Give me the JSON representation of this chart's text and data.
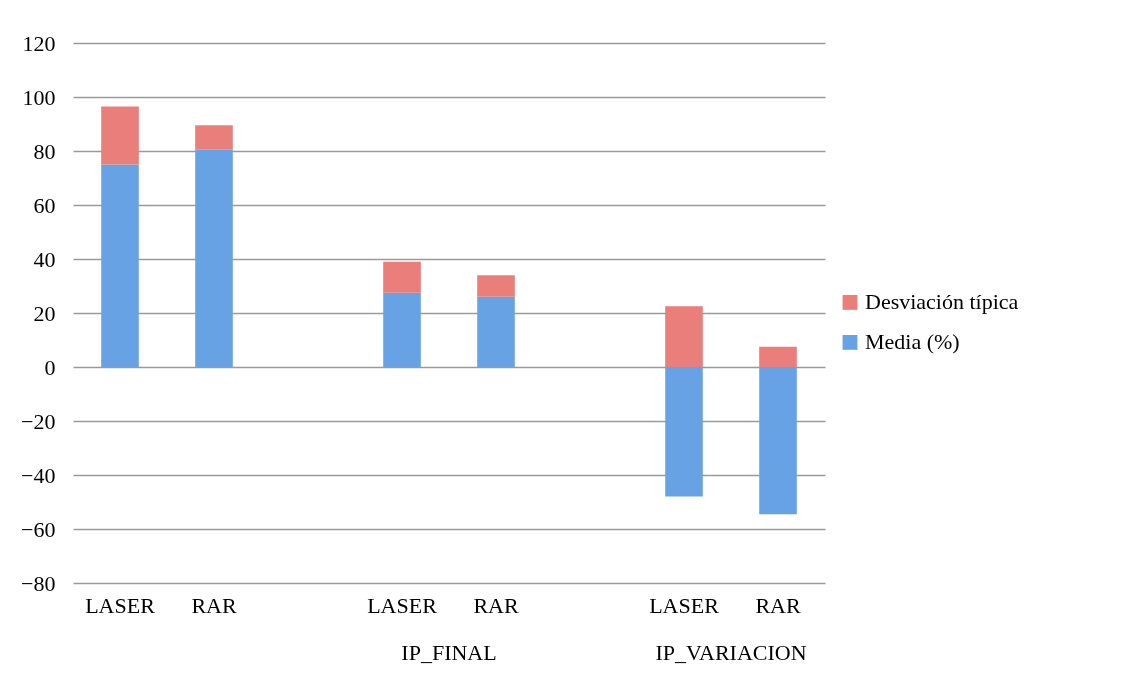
{
  "chart_data": {
    "type": "bar",
    "stacked": true,
    "categories": [
      "LASER",
      "RAR",
      null,
      "LASER",
      "RAR",
      null,
      "LASER",
      "RAR"
    ],
    "series": [
      {
        "name": "Media (%)",
        "color": "#67a3e4",
        "values": [
          75,
          80.5,
          null,
          27.5,
          26,
          null,
          -48,
          -54.5
        ]
      },
      {
        "name": "Desviación típica",
        "color": "#e97e7a",
        "values": [
          21.5,
          9,
          null,
          11.5,
          8,
          null,
          22.5,
          7.5
        ]
      }
    ],
    "annotations": [
      "IP_FINAL",
      "IP_VARIACION"
    ],
    "ylim": [
      -80,
      120
    ],
    "yticks": [
      -80,
      -60,
      -40,
      -20,
      0,
      20,
      40,
      60,
      80,
      100,
      120
    ],
    "grid": "y",
    "legend": "right"
  }
}
